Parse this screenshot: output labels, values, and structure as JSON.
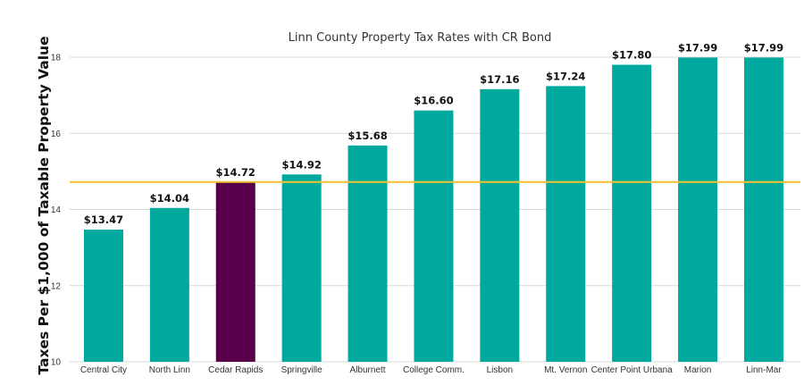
{
  "chart_data": {
    "type": "bar",
    "title": "Linn County Property Tax Rates with CR Bond",
    "xlabel": "",
    "ylabel": "Taxes Per $1,000 of Taxable Property Value",
    "ylim": [
      10,
      18
    ],
    "yticks": [
      10,
      12,
      14,
      16,
      18
    ],
    "categories": [
      "Central City",
      "North Linn",
      "Cedar Rapids",
      "Springville",
      "Alburnett",
      "College Comm.",
      "Lisbon",
      "Mt. Vernon",
      "Center Point Urbana",
      "Marion",
      "Linn-Mar"
    ],
    "values": [
      13.47,
      14.04,
      14.72,
      14.92,
      15.68,
      16.6,
      17.16,
      17.24,
      17.8,
      17.99,
      17.99
    ],
    "data_labels": [
      "$13.47",
      "$14.04",
      "$14.72",
      "$14.92",
      "$15.68",
      "$16.60",
      "$17.16",
      "$17.24",
      "$17.80",
      "$17.99",
      "$17.99"
    ],
    "highlight_category": "Cedar Rapids",
    "reference_line": {
      "value": 14.72
    },
    "grid": true,
    "colors": {
      "bar": "#00a99d",
      "highlight": "#570049",
      "reference_line": "#f5c12e",
      "grid": "#d9d9d9"
    }
  }
}
